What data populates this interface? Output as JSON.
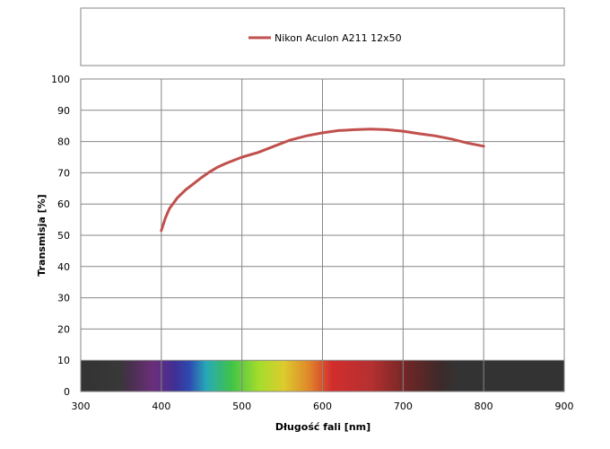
{
  "chart_data": {
    "type": "line",
    "title": "",
    "xlabel": "Długość fali [nm]",
    "ylabel": "Transmisja [%]",
    "xlim": [
      300,
      900
    ],
    "ylim": [
      0,
      100
    ],
    "x_ticks": [
      300,
      400,
      500,
      600,
      700,
      800,
      900
    ],
    "y_ticks": [
      0,
      10,
      20,
      30,
      40,
      50,
      60,
      70,
      80,
      90,
      100
    ],
    "grid": true,
    "legend_position": "top",
    "spectrum_band": {
      "y_range": [
        0,
        10
      ]
    },
    "series": [
      {
        "name": "Nikon Aculon A211 12x50",
        "color": "#c0504d",
        "x": [
          400,
          405,
          410,
          420,
          430,
          440,
          450,
          460,
          470,
          480,
          490,
          500,
          520,
          540,
          560,
          580,
          600,
          620,
          640,
          660,
          680,
          700,
          720,
          740,
          760,
          780,
          800
        ],
        "y": [
          51.5,
          55.5,
          58.5,
          62.0,
          64.5,
          66.5,
          68.5,
          70.3,
          71.8,
          73.0,
          74.0,
          75.0,
          76.5,
          78.5,
          80.5,
          81.8,
          82.8,
          83.5,
          83.8,
          84.0,
          83.8,
          83.3,
          82.5,
          81.8,
          80.8,
          79.5,
          78.5
        ]
      }
    ]
  }
}
